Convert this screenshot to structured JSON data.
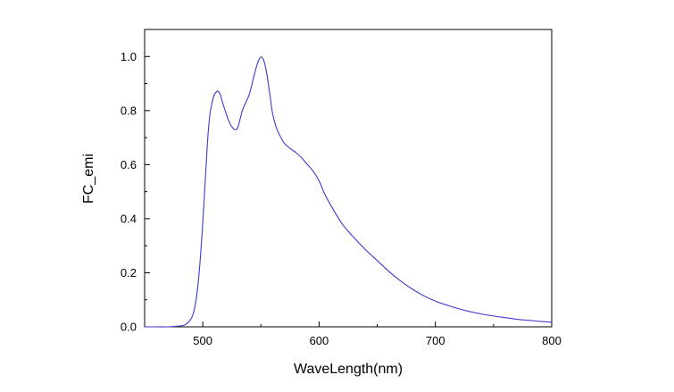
{
  "chart_data": {
    "type": "line",
    "title": "",
    "xlabel": "WaveLength(nm)",
    "ylabel": "FC_emi",
    "xlim": [
      450,
      800
    ],
    "ylim": [
      0.0,
      1.1
    ],
    "x_ticks": [
      500,
      600,
      700,
      800
    ],
    "x_tick_labels": [
      "500",
      "600",
      "700",
      "800"
    ],
    "x_minor_ticks": [
      450,
      550,
      650,
      750
    ],
    "y_ticks": [
      0.0,
      0.2,
      0.4,
      0.6,
      0.8,
      1.0
    ],
    "y_tick_labels": [
      "0.0",
      "0.2",
      "0.4",
      "0.6",
      "0.8",
      "1.0"
    ],
    "y_minor_ticks": [
      0.1,
      0.3,
      0.5,
      0.7,
      0.9,
      1.1
    ],
    "grid": false,
    "legend": "none",
    "line_color": "#3a3acc",
    "series": [
      {
        "x": [
          450,
          460,
          470,
          480,
          485,
          490,
          493,
          496,
          499,
          502,
          504,
          506,
          508,
          510,
          512,
          513,
          515,
          517,
          520,
          523,
          526,
          529,
          531,
          534,
          537,
          540,
          543,
          546,
          548,
          550,
          552,
          554,
          556,
          558,
          560,
          563,
          566,
          570,
          575,
          580,
          585,
          590,
          595,
          600,
          605,
          610,
          620,
          630,
          640,
          650,
          660,
          670,
          680,
          690,
          700,
          710,
          720,
          730,
          740,
          750,
          760,
          770,
          780,
          790,
          800
        ],
        "y": [
          0.0,
          0.0,
          0.0,
          0.003,
          0.008,
          0.03,
          0.07,
          0.16,
          0.32,
          0.53,
          0.68,
          0.78,
          0.83,
          0.86,
          0.87,
          0.872,
          0.86,
          0.83,
          0.79,
          0.755,
          0.735,
          0.73,
          0.75,
          0.8,
          0.83,
          0.86,
          0.91,
          0.96,
          0.985,
          0.998,
          0.99,
          0.96,
          0.91,
          0.85,
          0.79,
          0.74,
          0.71,
          0.68,
          0.66,
          0.645,
          0.625,
          0.6,
          0.575,
          0.54,
          0.49,
          0.45,
          0.38,
          0.33,
          0.285,
          0.245,
          0.205,
          0.17,
          0.14,
          0.115,
          0.095,
          0.08,
          0.067,
          0.056,
          0.047,
          0.04,
          0.034,
          0.028,
          0.024,
          0.02,
          0.017
        ]
      }
    ]
  }
}
